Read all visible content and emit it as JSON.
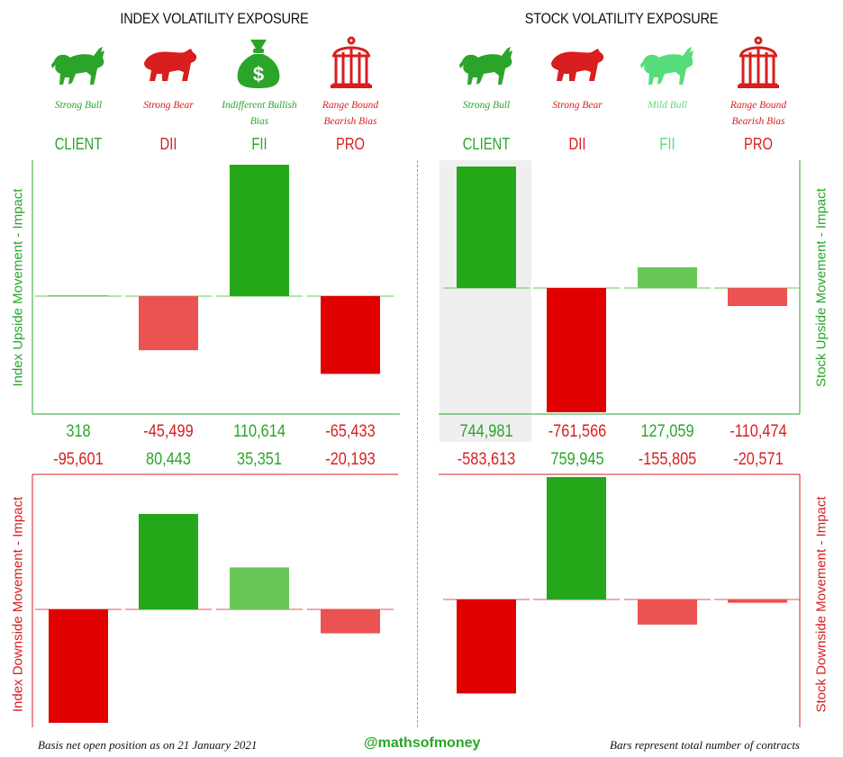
{
  "colors": {
    "green_strong": "#24a81a",
    "green_light": "#67c757",
    "green_mild_text": "#57dc7c",
    "red_strong": "#e00000",
    "red_light": "#eb5252",
    "highlight": "#efefef"
  },
  "index_section": {
    "title": "INDEX VOLATILITY EXPOSURE",
    "players": [
      {
        "name": "CLIENT",
        "sentiment": "Strong Bull",
        "icon": "bull-icon",
        "color": "#2aa52a",
        "sentiment_color": "#2aa52a"
      },
      {
        "name": "DII",
        "sentiment": "Strong Bear",
        "icon": "bear-icon",
        "color": "#d81e1e",
        "sentiment_color": "#d81e1e"
      },
      {
        "name": "FII",
        "sentiment": "Indifferent Bullish Bias",
        "sentiment_lines": [
          "Indifferent Bullish",
          "Bias"
        ],
        "icon": "money-bag-icon",
        "color": "#2aa52a",
        "sentiment_color": "#2aa52a"
      },
      {
        "name": "PRO",
        "sentiment": "Range Bound Bearish Bias",
        "sentiment_lines": [
          "Range Bound",
          "Bearish Bias"
        ],
        "icon": "cage-icon",
        "color": "#d81e1e",
        "sentiment_color": "#d81e1e"
      }
    ],
    "upside_label": "Index Upside Movement - Impact",
    "downside_label": "Index Downside Movement - Impact",
    "upside_values_text": [
      "318",
      "-45,499",
      "110,614",
      "-65,433"
    ],
    "downside_values_text": [
      "-95,601",
      "80,443",
      "35,351",
      "-20,193"
    ]
  },
  "stock_section": {
    "title": "STOCK VOLATILITY EXPOSURE",
    "players": [
      {
        "name": "CLIENT",
        "sentiment": "Strong Bull",
        "icon": "bull-icon",
        "color": "#2aa52a",
        "sentiment_color": "#2aa52a"
      },
      {
        "name": "DII",
        "sentiment": "Strong Bear",
        "icon": "bear-icon",
        "color": "#d81e1e",
        "sentiment_color": "#d81e1e"
      },
      {
        "name": "FII",
        "sentiment": "Mild Bull",
        "icon": "bull-icon",
        "color": "#57dc7c",
        "sentiment_color": "#57dc7c"
      },
      {
        "name": "PRO",
        "sentiment": "Range Bound Bearish Bias",
        "sentiment_lines": [
          "Range Bound",
          "Bearish Bias"
        ],
        "icon": "cage-icon",
        "color": "#d81e1e",
        "sentiment_color": "#d81e1e"
      }
    ],
    "upside_label": "Stock Upside Movement - Impact",
    "downside_label": "Stock Downside Movement - Impact",
    "upside_values_text": [
      "744,981",
      "-761,566",
      "127,059",
      "-110,474"
    ],
    "downside_values_text": [
      "-583,613",
      "759,945",
      "-155,805",
      "-20,571"
    ]
  },
  "chart_data": [
    {
      "type": "bar",
      "title": "Index Upside Movement - Impact",
      "categories": [
        "CLIENT",
        "DII",
        "FII",
        "PRO"
      ],
      "values": [
        318,
        -45499,
        110614,
        -65433
      ]
    },
    {
      "type": "bar",
      "title": "Index Downside Movement - Impact",
      "categories": [
        "CLIENT",
        "DII",
        "FII",
        "PRO"
      ],
      "values": [
        -95601,
        80443,
        35351,
        -20193
      ]
    },
    {
      "type": "bar",
      "title": "Stock Upside Movement - Impact",
      "categories": [
        "CLIENT",
        "DII",
        "FII",
        "PRO"
      ],
      "values": [
        744981,
        -761566,
        127059,
        -110474
      ]
    },
    {
      "type": "bar",
      "title": "Stock Downside Movement - Impact",
      "categories": [
        "CLIENT",
        "DII",
        "FII",
        "PRO"
      ],
      "values": [
        -583613,
        759945,
        -155805,
        -20571
      ]
    }
  ],
  "footer": {
    "left": "Basis net open position as on 21 January 2021",
    "center": "@mathsofmoney",
    "right": "Bars represent total number of contracts"
  }
}
